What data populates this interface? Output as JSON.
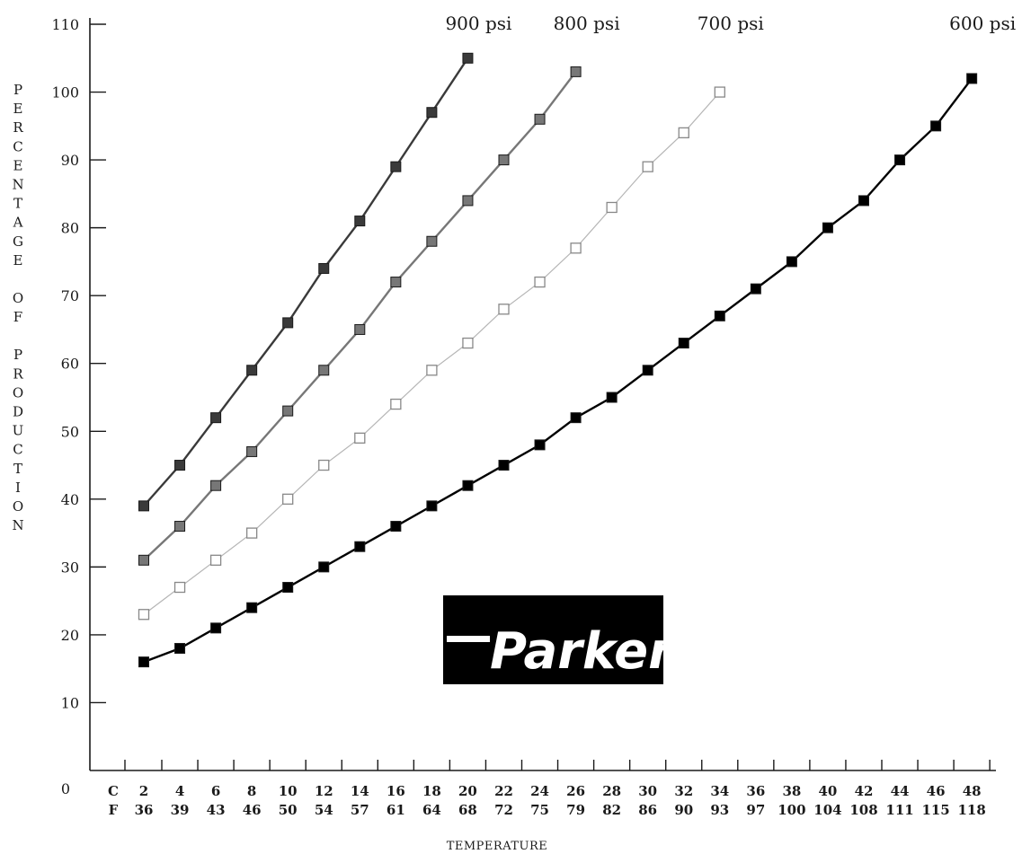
{
  "chart_data": {
    "type": "line",
    "title": "",
    "xlabel": "TEMPERATURE",
    "ylabel": "PERCENTAGE OF PRODUCTION",
    "ylim": [
      0,
      110
    ],
    "y_ticks": [
      "0",
      "10",
      "20",
      "30",
      "40",
      "50",
      "60",
      "70",
      "80",
      "90",
      "100",
      "110"
    ],
    "x_unit_labels": [
      "C",
      "F"
    ],
    "categories_c": [
      "2",
      "4",
      "6",
      "8",
      "10",
      "12",
      "14",
      "16",
      "18",
      "20",
      "22",
      "24",
      "26",
      "28",
      "30",
      "32",
      "34",
      "36",
      "38",
      "40",
      "42",
      "44",
      "46",
      "48"
    ],
    "categories_f": [
      "36",
      "39",
      "43",
      "46",
      "50",
      "54",
      "57",
      "61",
      "64",
      "68",
      "72",
      "75",
      "79",
      "82",
      "86",
      "90",
      "93",
      "97",
      "100",
      "104",
      "108",
      "111",
      "115",
      "118"
    ],
    "series": [
      {
        "name": "900 psi",
        "color": "#3a3a3a",
        "marker": "filled",
        "x": [
          2,
          4,
          6,
          8,
          10,
          12,
          14,
          16,
          18,
          20
        ],
        "values": [
          39,
          45,
          52,
          59,
          66,
          74,
          81,
          89,
          97,
          105
        ]
      },
      {
        "name": "800 psi",
        "color": "#777777",
        "marker": "filled",
        "x": [
          2,
          4,
          6,
          8,
          10,
          12,
          14,
          16,
          18,
          20,
          22,
          24,
          26
        ],
        "values": [
          31,
          36,
          42,
          47,
          53,
          59,
          65,
          72,
          78,
          84,
          90,
          96,
          103
        ]
      },
      {
        "name": "700 psi",
        "color": "#b5b5b5",
        "marker": "hollow",
        "x": [
          2,
          4,
          6,
          8,
          10,
          12,
          14,
          16,
          18,
          20,
          22,
          24,
          26,
          28,
          30,
          32,
          34
        ],
        "values": [
          23,
          27,
          31,
          35,
          40,
          45,
          49,
          54,
          59,
          63,
          68,
          72,
          77,
          83,
          89,
          94,
          100
        ]
      },
      {
        "name": "600 psi",
        "color": "#000000",
        "marker": "filled",
        "x": [
          2,
          4,
          6,
          8,
          10,
          12,
          14,
          16,
          18,
          20,
          22,
          24,
          26,
          28,
          30,
          32,
          34,
          36,
          38,
          40,
          42,
          44,
          46,
          48
        ],
        "values": [
          16,
          18,
          21,
          24,
          27,
          30,
          33,
          36,
          39,
          42,
          45,
          48,
          52,
          55,
          59,
          63,
          67,
          71,
          75,
          80,
          84,
          90,
          95,
          102
        ]
      }
    ],
    "legend": "inline labels at top of each series",
    "grid": false
  },
  "logo": {
    "text": "Parker",
    "colors": {
      "background": "#000000",
      "text": "#ffffff"
    }
  }
}
